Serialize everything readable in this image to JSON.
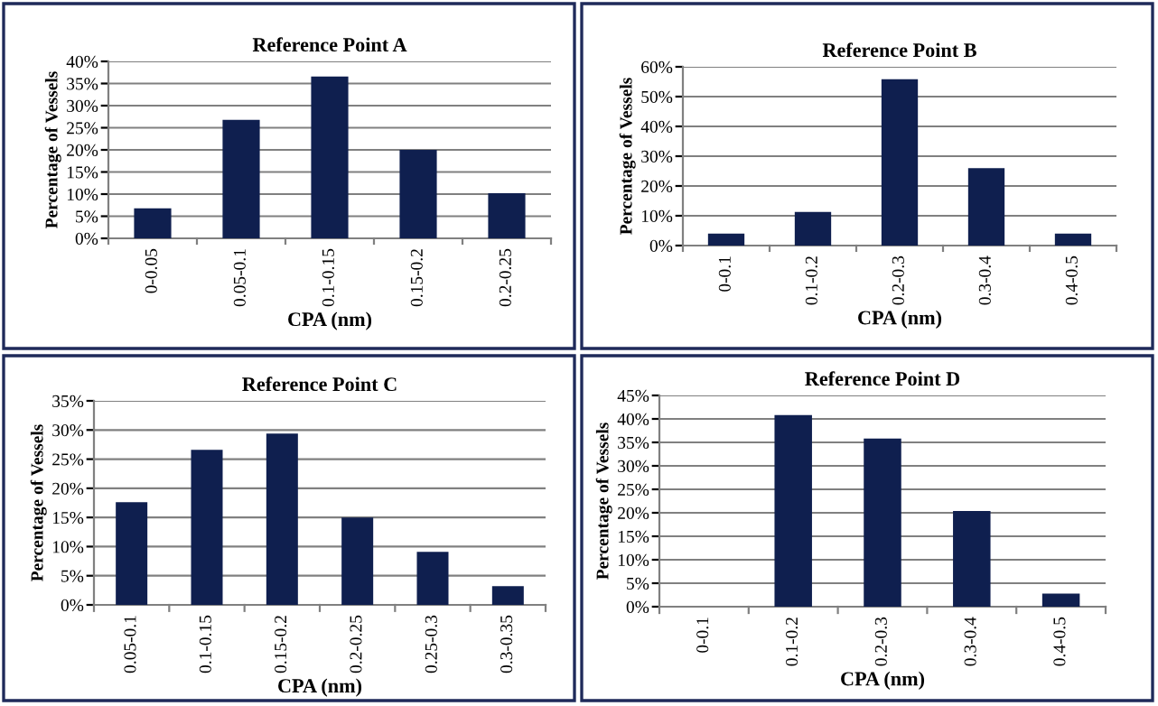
{
  "chart_data": [
    {
      "type": "bar",
      "title": "Reference Point A",
      "xlabel": "CPA (nm)",
      "ylabel": "Percentage of Vessels",
      "categories": [
        "0-0.05",
        "0.05-0.1",
        "0.1-0.15",
        "0.15-0.2",
        "0.2-0.25"
      ],
      "values": [
        6.8,
        26.8,
        36.6,
        20,
        10.2
      ],
      "color": "#0f1f4f",
      "ylim": [
        0,
        40
      ],
      "yticks": [
        {
          "value": 0,
          "label": "0%"
        },
        {
          "value": 5,
          "label": "5%"
        },
        {
          "value": 10,
          "label": "10%"
        },
        {
          "value": 15,
          "label": "15%"
        },
        {
          "value": 20,
          "label": "20%"
        },
        {
          "value": 25,
          "label": "25%"
        },
        {
          "value": 30,
          "label": "30%"
        },
        {
          "value": 35,
          "label": "35%"
        },
        {
          "value": 40,
          "label": "40%"
        }
      ],
      "grid": "y",
      "legend": false
    },
    {
      "type": "bar",
      "title": "Reference Point B",
      "xlabel": "CPA (nm)",
      "ylabel": "Percentage of Vessels",
      "categories": [
        "0-0.1",
        "0.1-0.2",
        "0.2-0.3",
        "0.3-0.4",
        "0.4-0.5"
      ],
      "values": [
        4,
        11.3,
        55.8,
        26,
        4
      ],
      "color": "#0f1f4f",
      "ylim": [
        0,
        60
      ],
      "yticks": [
        {
          "value": 0,
          "label": "0%"
        },
        {
          "value": 10,
          "label": "10%"
        },
        {
          "value": 20,
          "label": "20%"
        },
        {
          "value": 30,
          "label": "30%"
        },
        {
          "value": 40,
          "label": "40%"
        },
        {
          "value": 50,
          "label": "50%"
        },
        {
          "value": 60,
          "label": "60%"
        }
      ],
      "grid": "y",
      "legend": false
    },
    {
      "type": "bar",
      "title": "Reference Point C",
      "xlabel": "CPA (nm)",
      "ylabel": "Percentage of Vessels",
      "categories": [
        "0.05-0.1",
        "0.1-0.15",
        "0.15-0.2",
        "0.2-0.25",
        "0.25-0.3",
        "0.3-0.35"
      ],
      "values": [
        17.6,
        26.6,
        29.4,
        15,
        9.1,
        3.2
      ],
      "color": "#0f1f4f",
      "ylim": [
        0,
        35
      ],
      "yticks": [
        {
          "value": 0,
          "label": "0%"
        },
        {
          "value": 5,
          "label": "5%"
        },
        {
          "value": 10,
          "label": "10%"
        },
        {
          "value": 15,
          "label": "15%"
        },
        {
          "value": 20,
          "label": "20%"
        },
        {
          "value": 25,
          "label": "25%"
        },
        {
          "value": 30,
          "label": "30%"
        },
        {
          "value": 35,
          "label": "35%"
        }
      ],
      "grid": "y",
      "legend": false
    },
    {
      "type": "bar",
      "title": "Reference Point D",
      "xlabel": "CPA (nm)",
      "ylabel": "Percentage of Vessels",
      "categories": [
        "0-0.1",
        "0.1-0.2",
        "0.2-0.3",
        "0.3-0.4",
        "0.4-0.5"
      ],
      "values": [
        0,
        40.8,
        35.8,
        20.4,
        2.8
      ],
      "color": "#0f1f4f",
      "ylim": [
        0,
        45
      ],
      "yticks": [
        {
          "value": 0,
          "label": "0%"
        },
        {
          "value": 5,
          "label": "5%"
        },
        {
          "value": 10,
          "label": "10%"
        },
        {
          "value": 15,
          "label": "15%"
        },
        {
          "value": 20,
          "label": "20%"
        },
        {
          "value": 25,
          "label": "25%"
        },
        {
          "value": 30,
          "label": "30%"
        },
        {
          "value": 35,
          "label": "35%"
        },
        {
          "value": 40,
          "label": "40%"
        },
        {
          "value": 45,
          "label": "45%"
        }
      ],
      "grid": "y",
      "legend": false
    }
  ]
}
